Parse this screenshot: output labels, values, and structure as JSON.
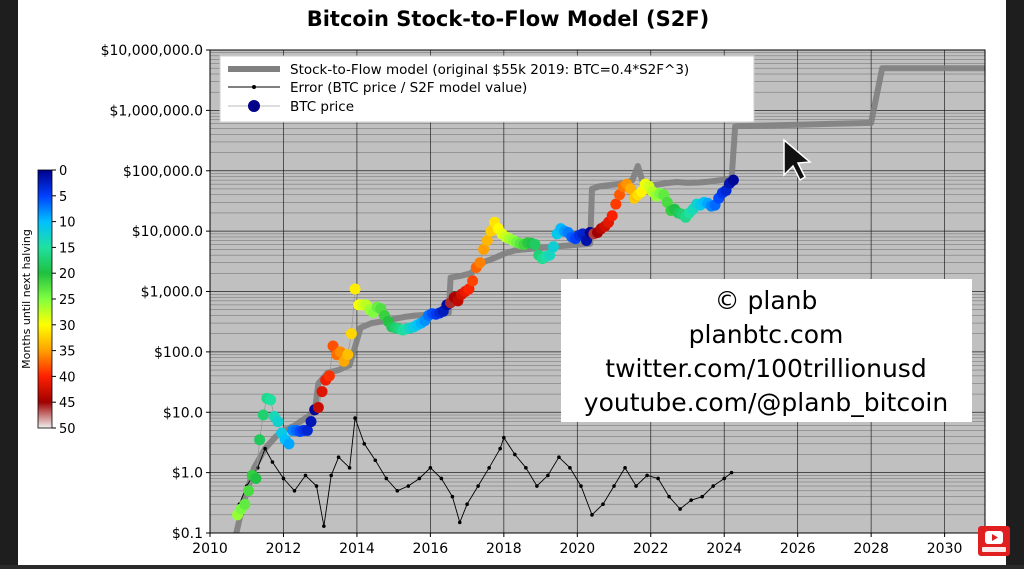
{
  "chart_data": {
    "type": "scatter",
    "title": "Bitcoin Stock-to-Flow Model (S2F)",
    "xlabel": "",
    "ylabel": "",
    "x_ticks": [
      "2010",
      "2012",
      "2014",
      "2016",
      "2018",
      "2020",
      "2022",
      "2024",
      "2026",
      "2028",
      "2030"
    ],
    "y_ticks": [
      "$0.1",
      "$1.0",
      "$10.0",
      "$100.0",
      "$1,000.0",
      "$10,000.0",
      "$100,000.0",
      "$1,000,000.0",
      "$10,000,000.0"
    ],
    "xlim": [
      2010,
      2031.1
    ],
    "ylim": [
      0.1,
      10000000
    ],
    "y_scale": "log",
    "grid": true,
    "legend_position": "top-left",
    "colorbar": {
      "label": "Months until next halving",
      "ticks": [
        "0",
        "5",
        "10",
        "15",
        "20",
        "25",
        "30",
        "35",
        "40",
        "45",
        "50"
      ],
      "range": [
        0,
        50
      ]
    },
    "series": [
      {
        "name": "Stock-to-Flow model (original $55k 2019:  BTC=0.4*S2F^3)",
        "kind": "line",
        "color": "#808080",
        "x": [
          2010.6,
          2010.9,
          2011.2,
          2011.5,
          2011.8,
          2012.0,
          2012.3,
          2012.6,
          2012.85,
          2012.95,
          2013.2,
          2013.5,
          2013.8,
          2014.1,
          2014.4,
          2014.7,
          2015.0,
          2015.3,
          2015.6,
          2015.9,
          2016.2,
          2016.5,
          2016.55,
          2016.8,
          2017.1,
          2017.4,
          2017.7,
          2018.0,
          2018.3,
          2018.6,
          2018.9,
          2019.2,
          2019.5,
          2019.8,
          2020.1,
          2020.35,
          2020.4,
          2020.6,
          2020.9,
          2021.1,
          2021.3,
          2021.5,
          2021.65,
          2021.8,
          2022.1,
          2022.4,
          2022.7,
          2023.0,
          2023.3,
          2023.6,
          2023.9,
          2024.2,
          2024.3,
          2025.0,
          2026.0,
          2027.0,
          2028.0,
          2028.3,
          2029.0,
          2030.0,
          2031.1
        ],
        "values": [
          0.05,
          0.3,
          1.2,
          2.5,
          4,
          5,
          6,
          8,
          10,
          30,
          45,
          50,
          60,
          250,
          300,
          320,
          350,
          380,
          400,
          410,
          420,
          440,
          1700,
          1800,
          2000,
          3000,
          3500,
          4200,
          4800,
          5000,
          5200,
          5400,
          5600,
          5800,
          6000,
          6200,
          50000,
          55000,
          58000,
          60000,
          62000,
          70000,
          120000,
          60000,
          58000,
          62000,
          65000,
          63000,
          64000,
          66000,
          70000,
          75000,
          550000,
          560000,
          580000,
          600000,
          620000,
          5000000,
          5000000,
          5000000,
          5000000
        ]
      },
      {
        "name": "Error (BTC price / S2F model value)",
        "kind": "line+markers",
        "color": "#000000",
        "x": [
          2010.8,
          2011.0,
          2011.3,
          2011.5,
          2011.7,
          2012.0,
          2012.3,
          2012.6,
          2012.9,
          2013.1,
          2013.3,
          2013.5,
          2013.8,
          2013.95,
          2014.2,
          2014.5,
          2014.8,
          2015.1,
          2015.4,
          2015.7,
          2016.0,
          2016.3,
          2016.6,
          2016.8,
          2017.0,
          2017.3,
          2017.6,
          2017.9,
          2018.0,
          2018.3,
          2018.6,
          2018.9,
          2019.2,
          2019.5,
          2019.8,
          2020.1,
          2020.4,
          2020.7,
          2021.0,
          2021.3,
          2021.6,
          2021.9,
          2022.2,
          2022.5,
          2022.8,
          2023.1,
          2023.4,
          2023.7,
          2024.0,
          2024.2
        ],
        "values": [
          0.3,
          0.6,
          1.2,
          2.5,
          1.5,
          0.8,
          0.5,
          0.9,
          0.6,
          0.13,
          0.9,
          1.8,
          1.2,
          8,
          3,
          1.6,
          0.8,
          0.5,
          0.6,
          0.8,
          1.2,
          0.8,
          0.4,
          0.15,
          0.3,
          0.6,
          1.2,
          2.5,
          3.8,
          2.0,
          1.2,
          0.6,
          0.9,
          1.8,
          1.2,
          0.6,
          0.2,
          0.3,
          0.6,
          1.2,
          0.6,
          0.9,
          0.8,
          0.4,
          0.25,
          0.35,
          0.4,
          0.6,
          0.8,
          1.0
        ]
      },
      {
        "name": "BTC price",
        "kind": "scatter",
        "color": "#00008b",
        "x": [
          2010.75,
          2010.85,
          2010.95,
          2011.05,
          2011.15,
          2011.25,
          2011.35,
          2011.45,
          2011.55,
          2011.65,
          2011.75,
          2011.85,
          2011.95,
          2012.05,
          2012.15,
          2012.25,
          2012.35,
          2012.45,
          2012.55,
          2012.65,
          2012.75,
          2012.85,
          2012.95,
          2013.05,
          2013.15,
          2013.25,
          2013.35,
          2013.45,
          2013.55,
          2013.65,
          2013.75,
          2013.85,
          2013.95,
          2014.05,
          2014.15,
          2014.25,
          2014.35,
          2014.45,
          2014.55,
          2014.65,
          2014.75,
          2014.85,
          2014.95,
          2015.05,
          2015.15,
          2015.25,
          2015.35,
          2015.45,
          2015.55,
          2015.65,
          2015.75,
          2015.85,
          2015.95,
          2016.05,
          2016.15,
          2016.25,
          2016.35,
          2016.45,
          2016.55,
          2016.65,
          2016.75,
          2016.85,
          2016.95,
          2017.05,
          2017.15,
          2017.25,
          2017.35,
          2017.45,
          2017.55,
          2017.65,
          2017.75,
          2017.85,
          2017.95,
          2018.05,
          2018.15,
          2018.25,
          2018.35,
          2018.45,
          2018.55,
          2018.65,
          2018.75,
          2018.85,
          2018.95,
          2019.05,
          2019.15,
          2019.25,
          2019.35,
          2019.45,
          2019.55,
          2019.65,
          2019.75,
          2019.85,
          2019.95,
          2020.05,
          2020.15,
          2020.25,
          2020.35,
          2020.45,
          2020.55,
          2020.65,
          2020.75,
          2020.85,
          2020.95,
          2021.05,
          2021.15,
          2021.25,
          2021.35,
          2021.45,
          2021.55,
          2021.65,
          2021.75,
          2021.85,
          2021.95,
          2022.05,
          2022.15,
          2022.25,
          2022.35,
          2022.45,
          2022.55,
          2022.65,
          2022.75,
          2022.85,
          2022.95,
          2023.05,
          2023.15,
          2023.25,
          2023.35,
          2023.45,
          2023.55,
          2023.65,
          2023.75,
          2023.85,
          2023.95,
          2024.05,
          2024.15,
          2024.25
        ],
        "values": [
          0.2,
          0.25,
          0.3,
          0.5,
          0.9,
          0.8,
          3.5,
          9,
          17,
          16,
          8.5,
          7,
          4.5,
          3.5,
          3,
          5,
          5,
          4.8,
          5,
          5,
          7,
          11,
          12,
          22,
          34,
          40,
          125,
          90,
          100,
          70,
          90,
          200,
          1100,
          600,
          600,
          600,
          500,
          450,
          550,
          520,
          400,
          320,
          260,
          250,
          240,
          230,
          240,
          250,
          260,
          280,
          300,
          330,
          400,
          430,
          420,
          440,
          470,
          600,
          650,
          800,
          700,
          900,
          1000,
          1100,
          1500,
          2500,
          3000,
          5000,
          7000,
          10000,
          14000,
          11000,
          9000,
          8000,
          7500,
          7000,
          6500,
          6200,
          6000,
          6400,
          6300,
          6000,
          4000,
          3500,
          3800,
          4000,
          5500,
          9000,
          11000,
          10000,
          9500,
          8000,
          7500,
          8500,
          9000,
          7000,
          9500,
          9000,
          9500,
          11000,
          12000,
          14000,
          18000,
          28000,
          40000,
          55000,
          60000,
          50000,
          35000,
          40000,
          45000,
          60000,
          55000,
          45000,
          38000,
          42000,
          40000,
          30000,
          22000,
          23000,
          20000,
          19000,
          17000,
          20000,
          23000,
          28000,
          27000,
          30000,
          29000,
          26000,
          27000,
          35000,
          43000,
          47000,
          62000,
          70000
        ]
      }
    ],
    "watermark": {
      "lines": [
        "© planb",
        "planbtc.com",
        "twitter.com/100trillionusd",
        "youtube.com/@planb_bitcoin"
      ]
    }
  }
}
